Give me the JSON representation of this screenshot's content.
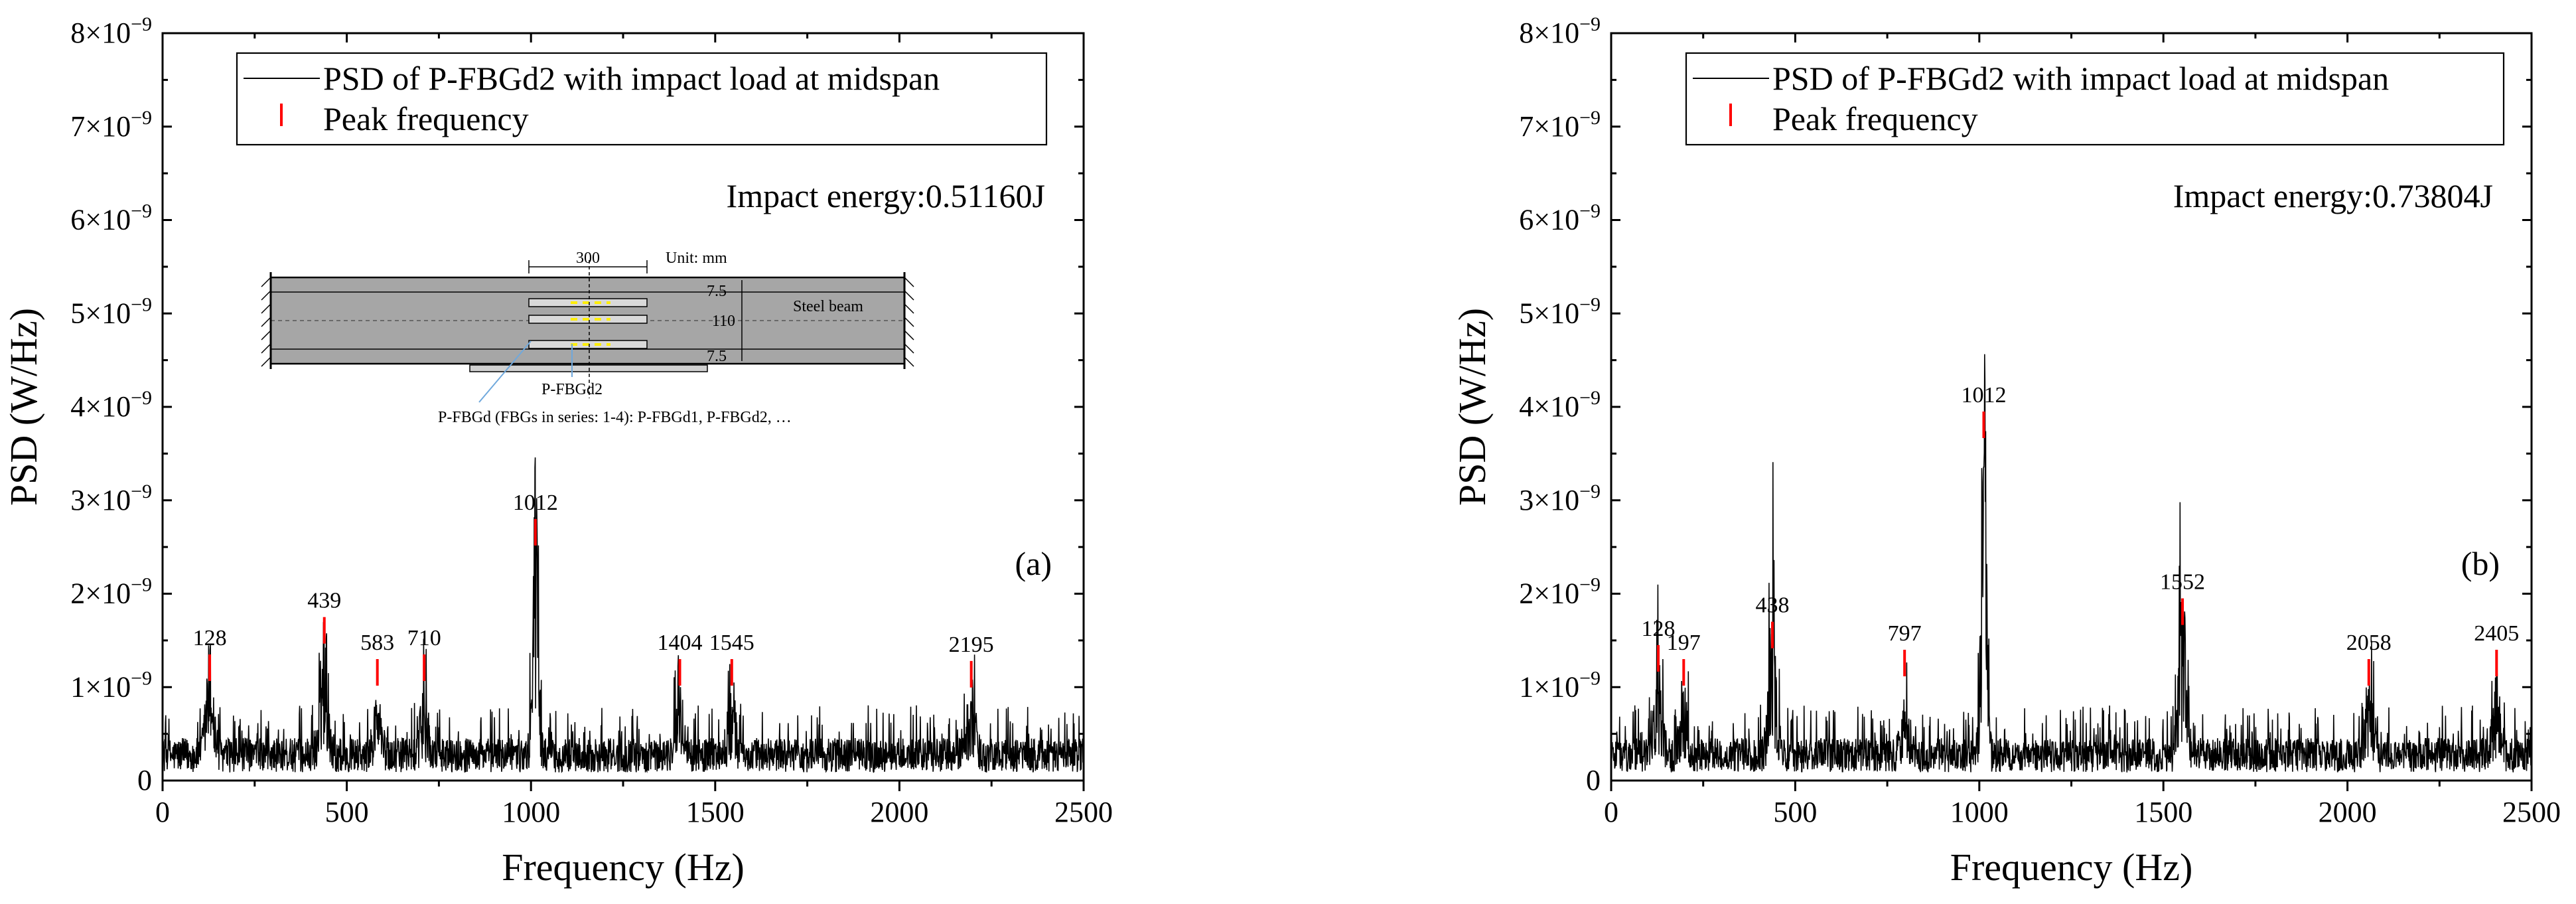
{
  "chart_data": [
    {
      "type": "line",
      "panel_label": "(a)",
      "xlabel": "Frequency (Hz)",
      "ylabel": "PSD (W/Hz)",
      "xlim": [
        0,
        2500
      ],
      "ylim": [
        0,
        8e-09
      ],
      "x_ticks": [
        "0",
        "500",
        "1000",
        "1500",
        "2000",
        "2500"
      ],
      "y_ticks": [
        {
          "base": "0",
          "exp": ""
        },
        {
          "base": "1×10",
          "exp": "−9"
        },
        {
          "base": "2×10",
          "exp": "−9"
        },
        {
          "base": "3×10",
          "exp": "−9"
        },
        {
          "base": "4×10",
          "exp": "−9"
        },
        {
          "base": "5×10",
          "exp": "−9"
        },
        {
          "base": "6×10",
          "exp": "−9"
        },
        {
          "base": "7×10",
          "exp": "−9"
        },
        {
          "base": "8×10",
          "exp": "−9"
        }
      ],
      "legend": {
        "series_label": "PSD of P-FBGd2 with impact load at midspan",
        "peak_label": "Peak frequency"
      },
      "annotation": "Impact energy:0.51160J",
      "series": [
        {
          "name": "PSD of P-FBGd2 with impact load at midspan",
          "noise_floor": 3.5e-10,
          "resonances": [
            {
              "freq": 128,
              "amp": 1.2e-09
            },
            {
              "freq": 439,
              "amp": 1.45e-09
            },
            {
              "freq": 583,
              "amp": 8e-10
            },
            {
              "freq": 710,
              "amp": 8e-10
            },
            {
              "freq": 1012,
              "amp": 2.7e-09
            },
            {
              "freq": 1404,
              "amp": 9e-10
            },
            {
              "freq": 1545,
              "amp": 9e-10
            },
            {
              "freq": 2195,
              "amp": 9e-10
            }
          ]
        }
      ],
      "peaks": [
        {
          "label": "128",
          "freq": 128,
          "mark_level": 1.35e-09
        },
        {
          "label": "439",
          "freq": 439,
          "mark_level": 1.75e-09
        },
        {
          "label": "583",
          "freq": 583,
          "mark_level": 1.3e-09
        },
        {
          "label": "710",
          "freq": 710,
          "mark_level": 1.35e-09
        },
        {
          "label": "1012",
          "freq": 1012,
          "mark_level": 2.8e-09
        },
        {
          "label": "1404",
          "freq": 1404,
          "mark_level": 1.3e-09
        },
        {
          "label": "1545",
          "freq": 1545,
          "mark_level": 1.3e-09
        },
        {
          "label": "2195",
          "freq": 2195,
          "mark_level": 1.28e-09
        }
      ],
      "inset": {
        "dim_span": "300",
        "unit": "Unit: mm",
        "dim_top": "7.5",
        "dim_mid": "110",
        "dim_bottom": "7.5",
        "beam_label": "Steel beam",
        "sensor_label": "P-FBGd2",
        "caption": "P-FBGd (FBGs in series: 1-4): P-FBGd1,  P-FBGd2,  …"
      }
    },
    {
      "type": "line",
      "panel_label": "(b)",
      "xlabel": "Frequency (Hz)",
      "ylabel": "PSD (W/Hz)",
      "xlim": [
        0,
        2500
      ],
      "ylim": [
        0,
        8e-09
      ],
      "x_ticks": [
        "0",
        "500",
        "1000",
        "1500",
        "2000",
        "2500"
      ],
      "y_ticks": [
        {
          "base": "0",
          "exp": ""
        },
        {
          "base": "1×10",
          "exp": "−9"
        },
        {
          "base": "2×10",
          "exp": "−9"
        },
        {
          "base": "3×10",
          "exp": "−9"
        },
        {
          "base": "4×10",
          "exp": "−9"
        },
        {
          "base": "5×10",
          "exp": "−9"
        },
        {
          "base": "6×10",
          "exp": "−9"
        },
        {
          "base": "7×10",
          "exp": "−9"
        },
        {
          "base": "8×10",
          "exp": "−9"
        }
      ],
      "legend": {
        "series_label": "PSD of P-FBGd2 with impact load at midspan",
        "peak_label": "Peak frequency"
      },
      "annotation": "Impact energy:0.73804J",
      "series": [
        {
          "name": "PSD of P-FBGd2 with impact load at midspan",
          "noise_floor": 3.5e-10,
          "resonances": [
            {
              "freq": 128,
              "amp": 1.1e-09
            },
            {
              "freq": 197,
              "amp": 8e-10
            },
            {
              "freq": 438,
              "amp": 1.5e-09
            },
            {
              "freq": 797,
              "amp": 7e-10
            },
            {
              "freq": 1012,
              "amp": 3.8e-09
            },
            {
              "freq": 1552,
              "amp": 1.6e-09
            },
            {
              "freq": 2058,
              "amp": 9e-10
            },
            {
              "freq": 2405,
              "amp": 9e-10
            }
          ]
        }
      ],
      "peaks": [
        {
          "label": "128",
          "freq": 128,
          "mark_level": 1.45e-09
        },
        {
          "label": "197",
          "freq": 197,
          "mark_level": 1.3e-09
        },
        {
          "label": "438",
          "freq": 438,
          "mark_level": 1.7e-09
        },
        {
          "label": "797",
          "freq": 797,
          "mark_level": 1.4e-09
        },
        {
          "label": "1012",
          "freq": 1012,
          "mark_level": 3.95e-09
        },
        {
          "label": "1552",
          "freq": 1552,
          "mark_level": 1.95e-09
        },
        {
          "label": "2058",
          "freq": 2058,
          "mark_level": 1.3e-09
        },
        {
          "label": "2405",
          "freq": 2405,
          "mark_level": 1.4e-09
        }
      ]
    }
  ]
}
